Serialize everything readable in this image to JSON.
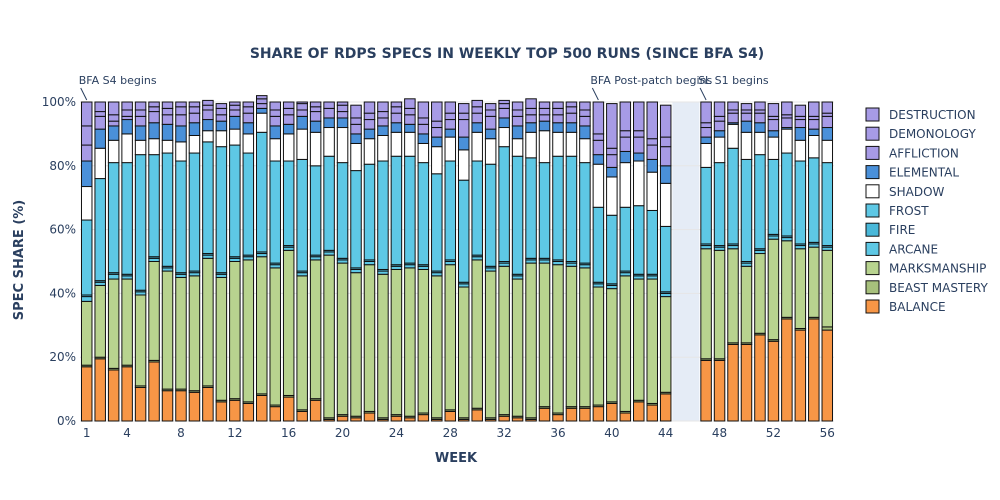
{
  "chart_data": {
    "type": "bar",
    "stacked": true,
    "title": "SHARE OF RDPS SPECS IN WEEKLY TOP 500 RUNS (SINCE BFA S4)",
    "xlabel": "WEEK",
    "ylabel": "SPEC SHARE (%)",
    "ylim": [
      0,
      100
    ],
    "xlim": [
      0.5,
      56.5
    ],
    "y_ticks": [
      "0%",
      "20%",
      "40%",
      "60%",
      "80%",
      "100%"
    ],
    "x_ticks": [
      1,
      4,
      8,
      12,
      16,
      20,
      24,
      28,
      32,
      36,
      40,
      44,
      48,
      52,
      56
    ],
    "grid": true,
    "legend_position": "right",
    "x": [
      1,
      2,
      3,
      4,
      5,
      6,
      7,
      8,
      9,
      10,
      11,
      12,
      13,
      14,
      15,
      16,
      17,
      18,
      19,
      20,
      21,
      22,
      23,
      24,
      25,
      26,
      27,
      28,
      29,
      30,
      31,
      32,
      33,
      34,
      35,
      36,
      37,
      38,
      39,
      40,
      41,
      42,
      43,
      44,
      47,
      48,
      49,
      50,
      51,
      52,
      53,
      54,
      55,
      56
    ],
    "series": [
      {
        "name": "BALANCE",
        "color": "#f79646",
        "values": [
          17,
          19.5,
          16,
          17,
          10.5,
          18.5,
          9.5,
          9.5,
          9,
          10.5,
          6,
          6.5,
          5.5,
          8,
          4.5,
          7.5,
          3,
          6.5,
          0.5,
          1.5,
          1,
          2.5,
          0.5,
          1.5,
          1,
          2,
          0.5,
          3,
          0.5,
          3.5,
          0.5,
          1.5,
          1,
          0.5,
          4,
          2,
          4,
          4,
          4.5,
          5.5,
          2.5,
          6,
          5,
          8.5,
          19,
          19,
          24,
          24,
          27,
          25,
          32,
          28.5,
          32,
          28.5
        ]
      },
      {
        "name": "BEAST MASTERY",
        "color": "#a7c07c",
        "values": [
          0.5,
          0.5,
          0.5,
          0.5,
          0.5,
          0.5,
          0.5,
          0.5,
          0.5,
          0.5,
          0.5,
          0.5,
          0.5,
          0.5,
          0.5,
          0.5,
          0.5,
          0.5,
          0.5,
          0.5,
          0.5,
          0.5,
          0.5,
          0.5,
          0.5,
          0.5,
          0.5,
          0.5,
          0.5,
          0.5,
          0.5,
          0.5,
          0.5,
          0.5,
          0.5,
          0.5,
          0.5,
          0.5,
          0.5,
          0.5,
          0.5,
          0.5,
          0.5,
          0.5,
          0.5,
          0.5,
          0.5,
          0.5,
          0.5,
          0.5,
          0.5,
          0.5,
          0.5,
          1
        ]
      },
      {
        "name": "MARKSMANSHIP",
        "color": "#b8d38f",
        "values": [
          20,
          22.5,
          28,
          27,
          28.5,
          31,
          37,
          35,
          36,
          40,
          38.5,
          43,
          44.5,
          43,
          43,
          45.5,
          42,
          43.5,
          51,
          47.5,
          45,
          46,
          45,
          45.5,
          46.5,
          45,
          44.5,
          45.5,
          41,
          46.5,
          46,
          46.5,
          43,
          48.5,
          45,
          46.5,
          44,
          43.5,
          37,
          35.5,
          42.5,
          38,
          39,
          30,
          34.5,
          34,
          29.5,
          24,
          25,
          31.5,
          24,
          25,
          22,
          24
        ]
      },
      {
        "name": "ARCANE",
        "color": "#5ec8e5",
        "values": [
          1.5,
          1,
          1.5,
          1,
          1,
          1,
          1,
          1,
          1,
          1,
          1,
          1,
          1,
          1,
          1,
          1,
          1,
          1,
          1,
          1,
          1,
          1,
          1,
          1,
          1,
          1,
          1,
          1,
          1,
          1,
          1,
          1,
          1,
          1,
          1,
          1,
          1,
          1,
          1,
          1,
          1,
          1,
          1,
          1,
          1,
          1,
          1,
          1,
          1,
          1,
          1,
          1,
          1,
          1
        ]
      },
      {
        "name": "FIRE",
        "color": "#49b8d9",
        "values": [
          0.5,
          0.5,
          0.5,
          0.5,
          0.5,
          0.5,
          0.5,
          0.5,
          0.5,
          0.5,
          0.5,
          0.5,
          0.5,
          0.5,
          0.5,
          0.5,
          0.5,
          0.5,
          0.5,
          0.5,
          0.5,
          0.5,
          0.5,
          0.5,
          0.5,
          0.5,
          0.5,
          0.5,
          0.5,
          0.5,
          0.5,
          0.5,
          0.5,
          0.5,
          0.5,
          0.5,
          0.5,
          0.5,
          0.5,
          0.5,
          0.5,
          0.5,
          0.5,
          0.5,
          0.5,
          0.5,
          0.5,
          0.5,
          0.5,
          0.5,
          0.5,
          0.5,
          0.5,
          0.5
        ]
      },
      {
        "name": "FROST",
        "color": "#5ec8e5",
        "values": [
          23.5,
          32,
          34.5,
          35,
          42.5,
          32,
          35.5,
          35,
          37,
          35,
          39.5,
          35,
          32,
          37.5,
          32,
          26.5,
          35,
          28,
          29.5,
          30,
          30.5,
          30,
          34,
          34,
          33.5,
          32,
          30.5,
          31,
          32,
          29.5,
          32,
          36,
          37,
          31.5,
          30,
          32.5,
          33,
          31.5,
          23.5,
          21.5,
          20,
          21.5,
          20,
          20.5,
          24,
          26,
          30,
          32,
          29.5,
          23.5,
          26,
          26,
          26.5,
          26
        ]
      },
      {
        "name": "SHADOW",
        "color": "#ffffff",
        "values": [
          10.5,
          9.5,
          7,
          9,
          4.5,
          5,
          4,
          6,
          5.5,
          3.5,
          5,
          5,
          6,
          6,
          7,
          8.5,
          9.5,
          10.5,
          9,
          11,
          8.5,
          8,
          8,
          7.5,
          7.5,
          6,
          8.5,
          7.5,
          9.5,
          9,
          8,
          6,
          5.5,
          8,
          10,
          7.5,
          7.5,
          7.5,
          13.5,
          12,
          14,
          14,
          12,
          13.5,
          7.5,
          8,
          7.5,
          8.5,
          7,
          7,
          7.5,
          6.5,
          7,
          7
        ]
      },
      {
        "name": "ELEMENTAL",
        "color": "#4a90d9",
        "values": [
          8,
          6,
          4.5,
          4.5,
          4.5,
          5,
          5,
          5,
          4,
          3.5,
          3,
          4,
          3.5,
          1.5,
          4,
          3,
          4,
          3.5,
          3,
          3,
          3,
          3,
          3,
          3,
          2.5,
          3,
          3,
          2.5,
          4,
          3,
          3,
          3,
          4,
          3,
          3,
          3,
          3,
          4,
          3,
          3,
          3.5,
          2.5,
          4,
          5.5,
          2,
          2,
          0.5,
          3.5,
          3,
          2,
          0.5,
          4,
          2,
          4
        ]
      },
      {
        "name": "AFFLICTION",
        "color": "#a79be6",
        "values": [
          5,
          4,
          1.5,
          1,
          3,
          3.5,
          3,
          3.5,
          3,
          3,
          2,
          2,
          3,
          1.5,
          3,
          3,
          2,
          3,
          3,
          2,
          3,
          3,
          2.5,
          3,
          3,
          3,
          3,
          3,
          5.5,
          3,
          4,
          3,
          3,
          2.5,
          2,
          2.5,
          3,
          3,
          4.5,
          4,
          4.5,
          5,
          4.5,
          6,
          3,
          3,
          3,
          2.5,
          3,
          3.5,
          3,
          2.5,
          3,
          3.5
        ]
      },
      {
        "name": "DEMONOLOGY",
        "color": "#a79be6",
        "values": [
          6,
          1.5,
          2,
          2,
          2,
          1.5,
          2,
          2.5,
          2,
          1.5,
          2,
          1.5,
          2,
          1.5,
          2,
          2,
          2,
          1.5,
          2,
          2,
          2,
          2,
          2,
          2,
          2,
          2,
          2,
          2,
          2,
          2,
          2,
          1.5,
          2,
          2,
          2,
          2,
          2,
          2,
          2,
          2,
          2,
          2,
          2,
          3,
          1.5,
          1.5,
          1,
          1,
          1,
          1,
          1,
          1,
          1,
          1
        ]
      },
      {
        "name": "DESTRUCTION",
        "color": "#a79be6",
        "values": [
          7.5,
          3,
          4,
          2.5,
          2.5,
          1.5,
          2,
          1.5,
          1.5,
          1.5,
          1.5,
          1,
          1.5,
          1,
          2.5,
          2,
          0.5,
          1.5,
          0,
          1,
          4,
          3.5,
          3,
          1.5,
          3,
          5,
          6,
          3.5,
          3,
          2,
          2,
          1,
          2.5,
          3,
          2,
          2,
          1.5,
          2.5,
          10,
          14,
          9,
          9,
          11.5,
          10,
          6.5,
          4.5,
          2.5,
          2,
          2.5,
          4,
          4,
          3.5,
          4.5,
          3.5
        ]
      }
    ],
    "shaded_region": {
      "x": [
        45,
        46
      ],
      "color": "#e5ecf6"
    },
    "annotations": [
      {
        "x": 1,
        "text": "BFA S4 begins"
      },
      {
        "x": 39,
        "text": "BFA Post-patch begins"
      },
      {
        "x": 47,
        "text": "SL S1 begins"
      }
    ]
  }
}
